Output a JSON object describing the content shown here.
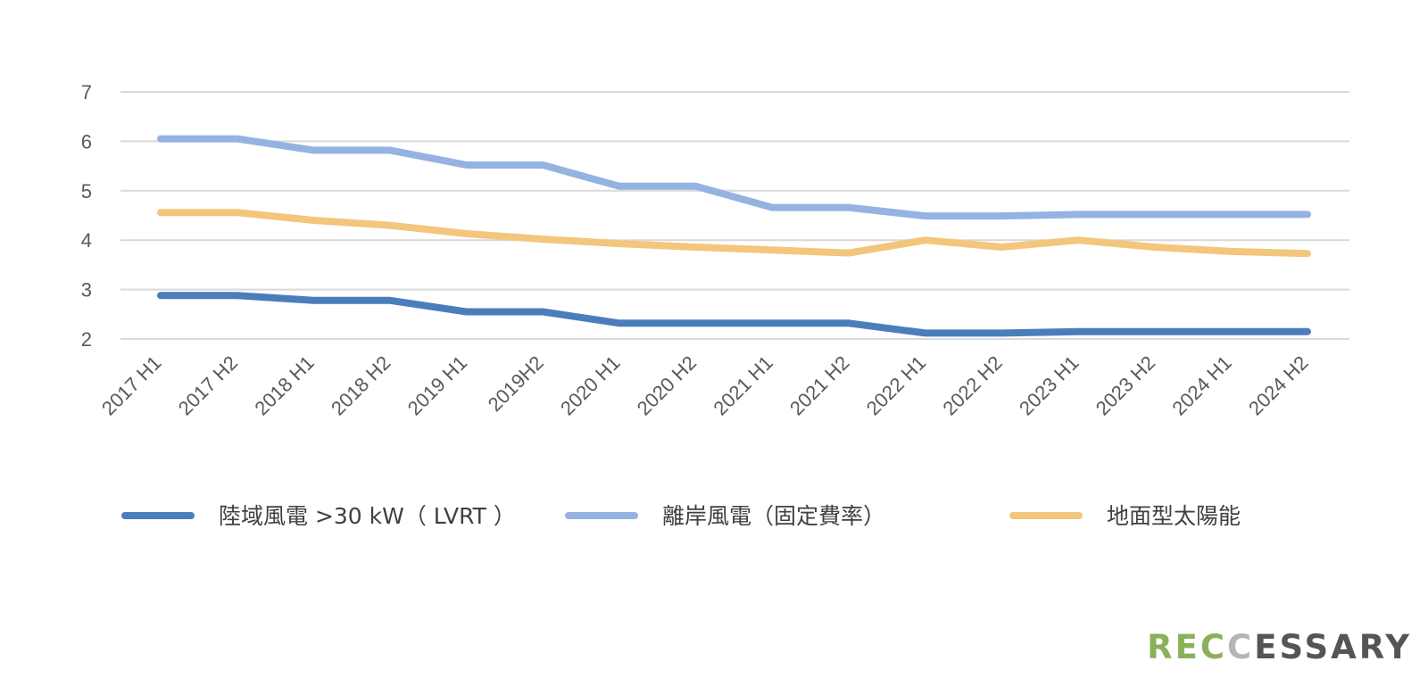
{
  "chart_data": {
    "type": "line",
    "categories": [
      "2017 H1",
      "2017 H2",
      "2018 H1",
      "2018 H2",
      "2019 H1",
      "2019H2",
      "2020 H1",
      "2020 H2",
      "2021 H1",
      "2021 H2",
      "2022 H1",
      "2022 H2",
      "2023 H1",
      "2023 H2",
      "2024 H1",
      "2024 H2"
    ],
    "series": [
      {
        "name": "陸域風電 >30 kW（ LVRT ）",
        "color": "#4a7ebb",
        "values": [
          2.88,
          2.88,
          2.78,
          2.78,
          2.55,
          2.55,
          2.32,
          2.32,
          2.32,
          2.32,
          2.12,
          2.12,
          2.15,
          2.15,
          2.15,
          2.15
        ]
      },
      {
        "name": "離岸風電（固定費率）",
        "color": "#95b3e0",
        "values": [
          6.05,
          6.05,
          5.82,
          5.82,
          5.52,
          5.52,
          5.09,
          5.09,
          4.66,
          4.66,
          4.49,
          4.49,
          4.52,
          4.52,
          4.52,
          4.52
        ]
      },
      {
        "name": "地面型太陽能",
        "color": "#f2c67d",
        "values": [
          4.56,
          4.56,
          4.4,
          4.3,
          4.13,
          4.02,
          3.93,
          3.86,
          3.8,
          3.74,
          4.0,
          3.86,
          4.0,
          3.86,
          3.77,
          3.73
        ]
      }
    ],
    "yticks": [
      2,
      3,
      4,
      5,
      6,
      7
    ],
    "ylim": [
      2,
      7
    ],
    "grid": true,
    "legend": "bottom"
  },
  "logo": {
    "part1": "REC",
    "part2": "C",
    "part3": "ESSARY",
    "color1": "#8ab15a",
    "color2": "#b5b5b5",
    "color3": "#555555"
  }
}
